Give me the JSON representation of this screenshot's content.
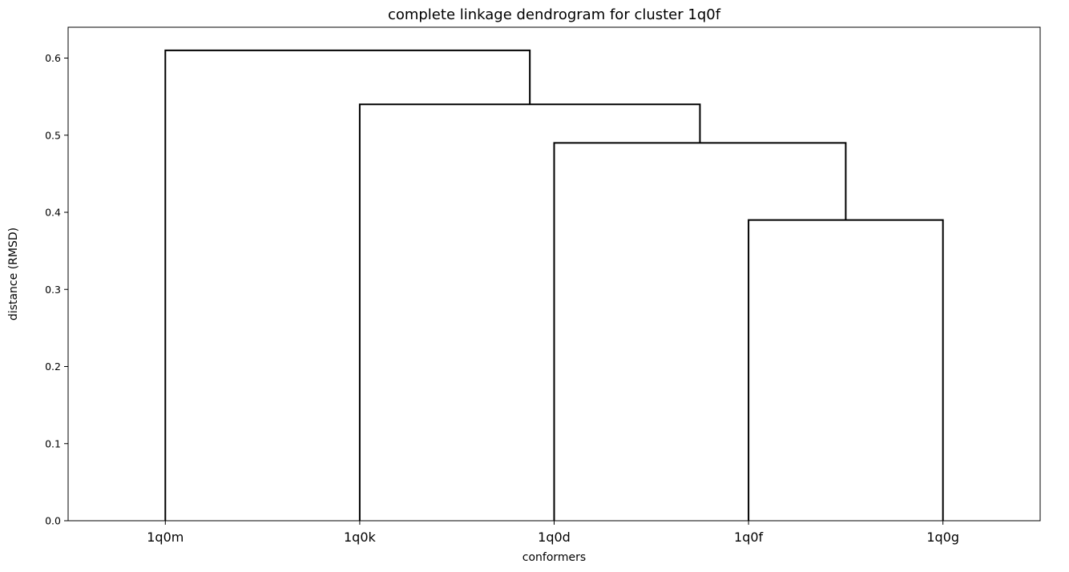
{
  "chart_data": {
    "type": "dendrogram",
    "title": "complete linkage dendrogram for cluster 1q0f",
    "xlabel": "conformers",
    "ylabel": "distance (RMSD)",
    "ylim": [
      0,
      0.64
    ],
    "yticks": [
      0.0,
      0.1,
      0.2,
      0.3,
      0.4,
      0.5,
      0.6
    ],
    "ytick_labels": [
      "0.0",
      "0.1",
      "0.2",
      "0.3",
      "0.4",
      "0.5",
      "0.6"
    ],
    "leaves": [
      "1q0m",
      "1q0k",
      "1q0d",
      "1q0f",
      "1q0g"
    ],
    "merges": [
      {
        "left": "1q0f",
        "right": "1q0g",
        "height": 0.39
      },
      {
        "left": "1q0d",
        "right": "1q0f+1q0g",
        "height": 0.49
      },
      {
        "left": "1q0k",
        "right": "1q0d+1q0f+1q0g",
        "height": 0.54
      },
      {
        "left": "1q0m",
        "right": "1q0k+1q0d+1q0f+1q0g",
        "height": 0.61
      }
    ],
    "line_color": "#000000",
    "grid": false,
    "legend": "none"
  }
}
